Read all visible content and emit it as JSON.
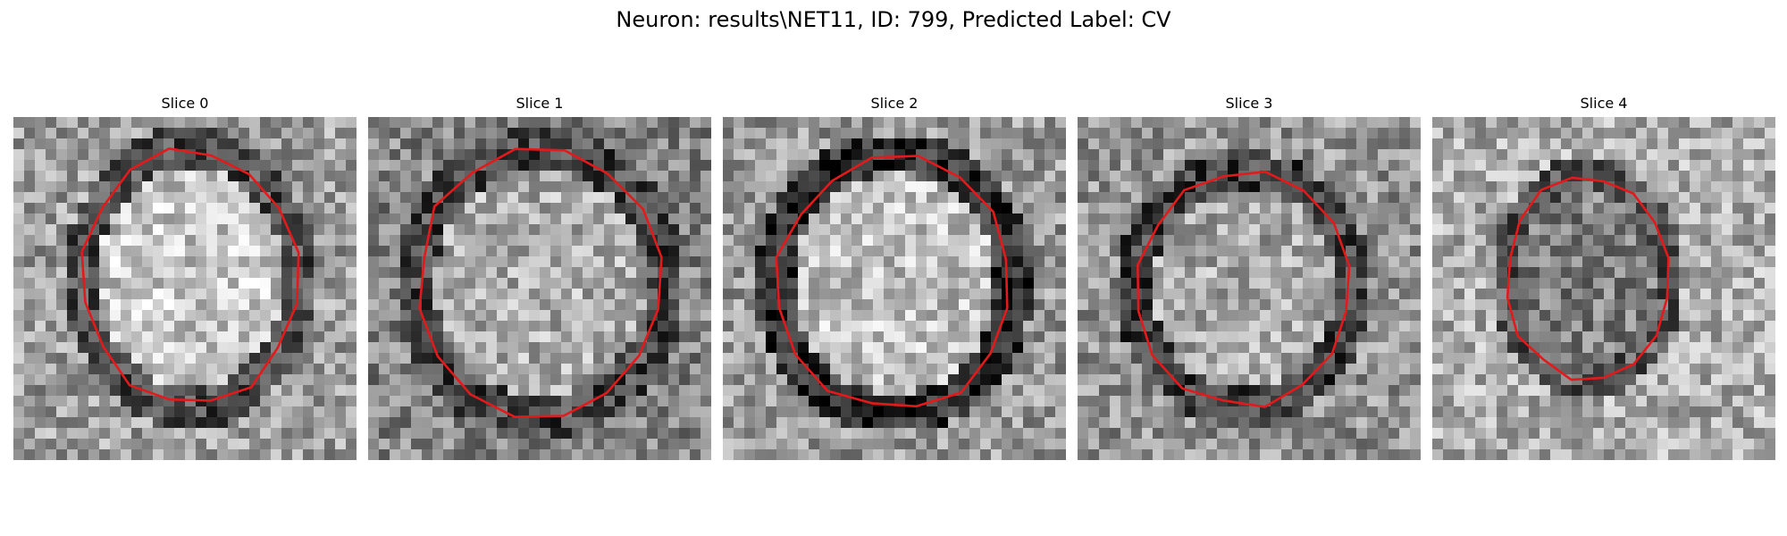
{
  "figure": {
    "title": "Neuron: results\\NET11, ID: 799, Predicted Label: CV"
  },
  "contour_color": "#e31a1c",
  "colormap": "gray",
  "grid_size": 32,
  "slices": [
    {
      "label": "Slice 0",
      "seed": 11,
      "ring": {
        "cx": 16.5,
        "cy": 15.0,
        "rx": 10.5,
        "ry": 12.5,
        "inner_brightness": 0.78,
        "ring_brightness": 0.3,
        "outer_brightness": 0.62
      }
    },
    {
      "label": "Slice 1",
      "seed": 23,
      "ring": {
        "cx": 16.0,
        "cy": 15.5,
        "rx": 12.0,
        "ry": 13.0,
        "inner_brightness": 0.68,
        "ring_brightness": 0.28,
        "outer_brightness": 0.52
      }
    },
    {
      "label": "Slice 2",
      "seed": 37,
      "ring": {
        "cx": 16.0,
        "cy": 15.5,
        "rx": 11.5,
        "ry": 12.5,
        "inner_brightness": 0.75,
        "ring_brightness": 0.18,
        "outer_brightness": 0.6
      }
    },
    {
      "label": "Slice 3",
      "seed": 51,
      "ring": {
        "cx": 15.5,
        "cy": 16.0,
        "rx": 10.5,
        "ry": 11.5,
        "inner_brightness": 0.66,
        "ring_brightness": 0.25,
        "outer_brightness": 0.58
      }
    },
    {
      "label": "Slice 4",
      "seed": 67,
      "ring": {
        "cx": 14.5,
        "cy": 15.0,
        "rx": 8.0,
        "ry": 10.0,
        "inner_brightness": 0.5,
        "ring_brightness": 0.35,
        "outer_brightness": 0.68
      }
    }
  ]
}
